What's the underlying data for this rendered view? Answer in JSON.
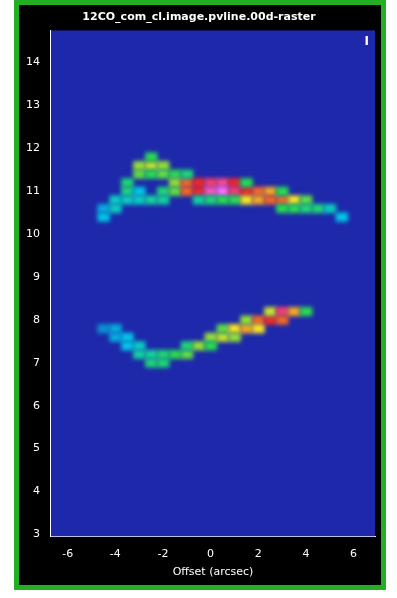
{
  "chart_data": {
    "type": "heatmap",
    "title": "12CO_com_cl.image.pvline.00d-raster",
    "x_label": "Offset (arcsec)",
    "annotations": [
      "I"
    ],
    "xlim": [
      -6.7,
      6.9
    ],
    "xticks": [
      -6,
      -4,
      -2,
      0,
      2,
      4,
      6
    ],
    "ylim": [
      2.95,
      14.75
    ],
    "yticks": [
      3,
      4,
      5,
      6,
      7,
      8,
      9,
      10,
      11,
      12,
      13,
      14
    ],
    "grid": false,
    "zlim": [
      0,
      1
    ],
    "cells": [
      [
        -4.5,
        10.4,
        0.3
      ],
      [
        -4.5,
        10.6,
        0.25
      ],
      [
        -4,
        10.6,
        0.35
      ],
      [
        -4,
        10.8,
        0.35
      ],
      [
        -3.5,
        11.0,
        0.45
      ],
      [
        -3.5,
        11.2,
        0.45
      ],
      [
        -3.5,
        10.8,
        0.35
      ],
      [
        -3,
        11.4,
        0.55
      ],
      [
        -3,
        11.6,
        0.6
      ],
      [
        -3,
        11.0,
        0.3
      ],
      [
        -3,
        10.8,
        0.35
      ],
      [
        -2.5,
        11.6,
        0.65
      ],
      [
        -2.5,
        11.8,
        0.5
      ],
      [
        -2.5,
        10.8,
        0.4
      ],
      [
        -2.5,
        11.4,
        0.5
      ],
      [
        -2,
        11.6,
        0.6
      ],
      [
        -2,
        11.4,
        0.55
      ],
      [
        -2,
        11.0,
        0.45
      ],
      [
        -2,
        10.8,
        0.4
      ],
      [
        -1.5,
        11.4,
        0.5
      ],
      [
        -1.5,
        11.2,
        0.6
      ],
      [
        -1.5,
        11.0,
        0.55
      ],
      [
        -1,
        11.2,
        0.8
      ],
      [
        -1,
        11.0,
        0.8
      ],
      [
        -1,
        11.4,
        0.45
      ],
      [
        -0.5,
        11.2,
        0.85
      ],
      [
        -0.5,
        11.0,
        0.85
      ],
      [
        -0.5,
        10.8,
        0.4
      ],
      [
        0,
        11.2,
        0.9
      ],
      [
        0,
        11.0,
        0.95
      ],
      [
        0,
        10.8,
        0.45
      ],
      [
        0.5,
        11.2,
        0.92
      ],
      [
        0.5,
        11.0,
        1.0
      ],
      [
        0.5,
        10.8,
        0.5
      ],
      [
        1,
        11.2,
        0.85
      ],
      [
        1,
        11.0,
        0.9
      ],
      [
        1,
        10.8,
        0.5
      ],
      [
        1.5,
        11.0,
        0.85
      ],
      [
        1.5,
        10.8,
        0.7
      ],
      [
        1.5,
        11.2,
        0.5
      ],
      [
        2,
        11.0,
        0.8
      ],
      [
        2,
        10.8,
        0.75
      ],
      [
        2.5,
        11.0,
        0.75
      ],
      [
        2.5,
        10.8,
        0.8
      ],
      [
        3,
        10.8,
        0.8
      ],
      [
        3,
        10.6,
        0.5
      ],
      [
        3,
        11.0,
        0.5
      ],
      [
        3.5,
        10.8,
        0.7
      ],
      [
        3.5,
        10.6,
        0.5
      ],
      [
        4,
        10.8,
        0.55
      ],
      [
        4,
        10.6,
        0.45
      ],
      [
        4.5,
        10.6,
        0.45
      ],
      [
        5,
        10.6,
        0.35
      ],
      [
        5.5,
        10.4,
        0.3
      ],
      [
        -4.5,
        7.8,
        0.2
      ],
      [
        -4,
        7.8,
        0.25
      ],
      [
        -4,
        7.6,
        0.25
      ],
      [
        -3.5,
        7.6,
        0.3
      ],
      [
        -3.5,
        7.4,
        0.3
      ],
      [
        -3,
        7.2,
        0.4
      ],
      [
        -3,
        7.4,
        0.35
      ],
      [
        -2.5,
        7.0,
        0.45
      ],
      [
        -2.5,
        7.2,
        0.4
      ],
      [
        -2,
        7.0,
        0.45
      ],
      [
        -2,
        7.2,
        0.45
      ],
      [
        -1.5,
        7.2,
        0.5
      ],
      [
        -1,
        7.2,
        0.55
      ],
      [
        -1,
        7.4,
        0.45
      ],
      [
        -0.5,
        7.4,
        0.6
      ],
      [
        0,
        7.6,
        0.6
      ],
      [
        0,
        7.4,
        0.5
      ],
      [
        0.5,
        7.6,
        0.65
      ],
      [
        0.5,
        7.8,
        0.55
      ],
      [
        1,
        7.8,
        0.7
      ],
      [
        1,
        7.6,
        0.6
      ],
      [
        1.5,
        7.8,
        0.75
      ],
      [
        1.5,
        8.0,
        0.6
      ],
      [
        2,
        8.0,
        0.8
      ],
      [
        2,
        7.8,
        0.7
      ],
      [
        2.5,
        8.0,
        0.85
      ],
      [
        2.5,
        8.2,
        0.65
      ],
      [
        3,
        8.2,
        0.9
      ],
      [
        3,
        8.0,
        0.8
      ],
      [
        3.5,
        8.2,
        0.75
      ],
      [
        4,
        8.2,
        0.5
      ]
    ]
  }
}
